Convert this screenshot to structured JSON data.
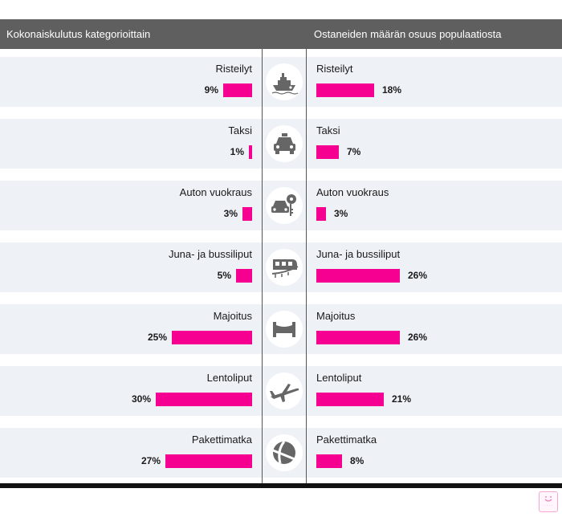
{
  "headers": {
    "left": "Kokonaiskulutus kategorioittain",
    "right": "Ostaneiden määrän osuus populaatiosta"
  },
  "colors": {
    "bar": "#f50090",
    "header": "#5f5f5f",
    "row": "#eef1f6"
  },
  "chart_data": {
    "type": "bar",
    "categories": [
      "Risteilyt",
      "Taksi",
      "Auton vuokraus",
      "Juna- ja bussiliput",
      "Majoitus",
      "Lentoliput",
      "Pakettimatka"
    ],
    "series": [
      {
        "name": "Kokonaiskulutus kategorioittain",
        "values": [
          9,
          1,
          3,
          5,
          25,
          30,
          27
        ]
      },
      {
        "name": "Ostaneiden määrän osuus populaatiosta",
        "values": [
          18,
          7,
          3,
          26,
          26,
          21,
          8
        ]
      }
    ],
    "value_labels_left": [
      "9%",
      "1%",
      "3%",
      "5%",
      "25%",
      "30%",
      "27%"
    ],
    "value_labels_right": [
      "18%",
      "7%",
      "3%",
      "26%",
      "26%",
      "21%",
      "8%"
    ],
    "icons": [
      "ship-icon",
      "taxi-icon",
      "car-rental-icon",
      "train-icon",
      "bed-icon",
      "airplane-icon",
      "beach-ball-icon"
    ],
    "unit": "%"
  }
}
